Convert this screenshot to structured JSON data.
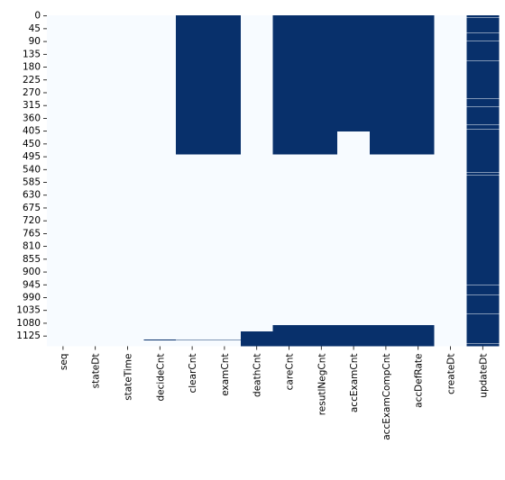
{
  "chart_data": {
    "type": "heatmap",
    "title": "",
    "xlabel": "",
    "ylabel": "",
    "colors": {
      "missing": "#08306b",
      "present": "#f7fbff"
    },
    "n_rows": 1163,
    "columns": [
      "seq",
      "stateDt",
      "stateTime",
      "decideCnt",
      "clearCnt",
      "examCnt",
      "deathCnt",
      "careCnt",
      "resutlNegCnt",
      "accExamCnt",
      "accExamCompCnt",
      "accDefRate",
      "createDt",
      "updateDt"
    ],
    "y_tick_labels": [
      "0",
      "45",
      "90",
      "135",
      "180",
      "225",
      "270",
      "315",
      "360",
      "405",
      "450",
      "495",
      "540",
      "585",
      "630",
      "675",
      "720",
      "765",
      "810",
      "855",
      "900",
      "945",
      "990",
      "1035",
      "1080",
      "1125"
    ],
    "y_tick_values": [
      0,
      45,
      90,
      135,
      180,
      225,
      270,
      315,
      360,
      405,
      450,
      495,
      540,
      585,
      630,
      675,
      720,
      765,
      810,
      855,
      900,
      945,
      990,
      1035,
      1080,
      1125
    ],
    "missing_ranges": {
      "seq": [],
      "stateDt": [],
      "stateTime": [],
      "decideCnt": [
        [
          1139,
          1142
        ]
      ],
      "clearCnt": [
        [
          0,
          489
        ],
        [
          1141,
          1143
        ]
      ],
      "examCnt": [
        [
          0,
          489
        ],
        [
          1141,
          1143
        ]
      ],
      "deathCnt": [
        [
          1111,
          1163
        ]
      ],
      "careCnt": [
        [
          0,
          489
        ],
        [
          1088,
          1163
        ]
      ],
      "resutlNegCnt": [
        [
          0,
          489
        ],
        [
          1088,
          1163
        ]
      ],
      "accExamCnt": [
        [
          0,
          409
        ],
        [
          1088,
          1163
        ]
      ],
      "accExamCompCnt": [
        [
          0,
          489
        ],
        [
          1088,
          1163
        ]
      ],
      "accDefRate": [
        [
          0,
          489
        ],
        [
          1088,
          1163
        ]
      ],
      "createDt": [],
      "updateDt": [
        [
          0,
          1163
        ]
      ]
    },
    "present_rows": {
      "accExamCnt": [
        [
          410,
          489
        ]
      ],
      "updateDt": [
        [
          7,
          8
        ],
        [
          60,
          61
        ],
        [
          90,
          91
        ],
        [
          148,
          149
        ],
        [
          160,
          161
        ],
        [
          213,
          214
        ],
        [
          293,
          294
        ],
        [
          321,
          322
        ],
        [
          330,
          331
        ],
        [
          385,
          386
        ],
        [
          401,
          402
        ],
        [
          436,
          437
        ],
        [
          490,
          491
        ],
        [
          504,
          505
        ],
        [
          553,
          554
        ],
        [
          562,
          563
        ],
        [
          737,
          738
        ],
        [
          946,
          947
        ],
        [
          983,
          984
        ],
        [
          1049,
          1050
        ],
        [
          1074,
          1075
        ],
        [
          1112,
          1113
        ],
        [
          1152,
          1154
        ]
      ]
    }
  }
}
